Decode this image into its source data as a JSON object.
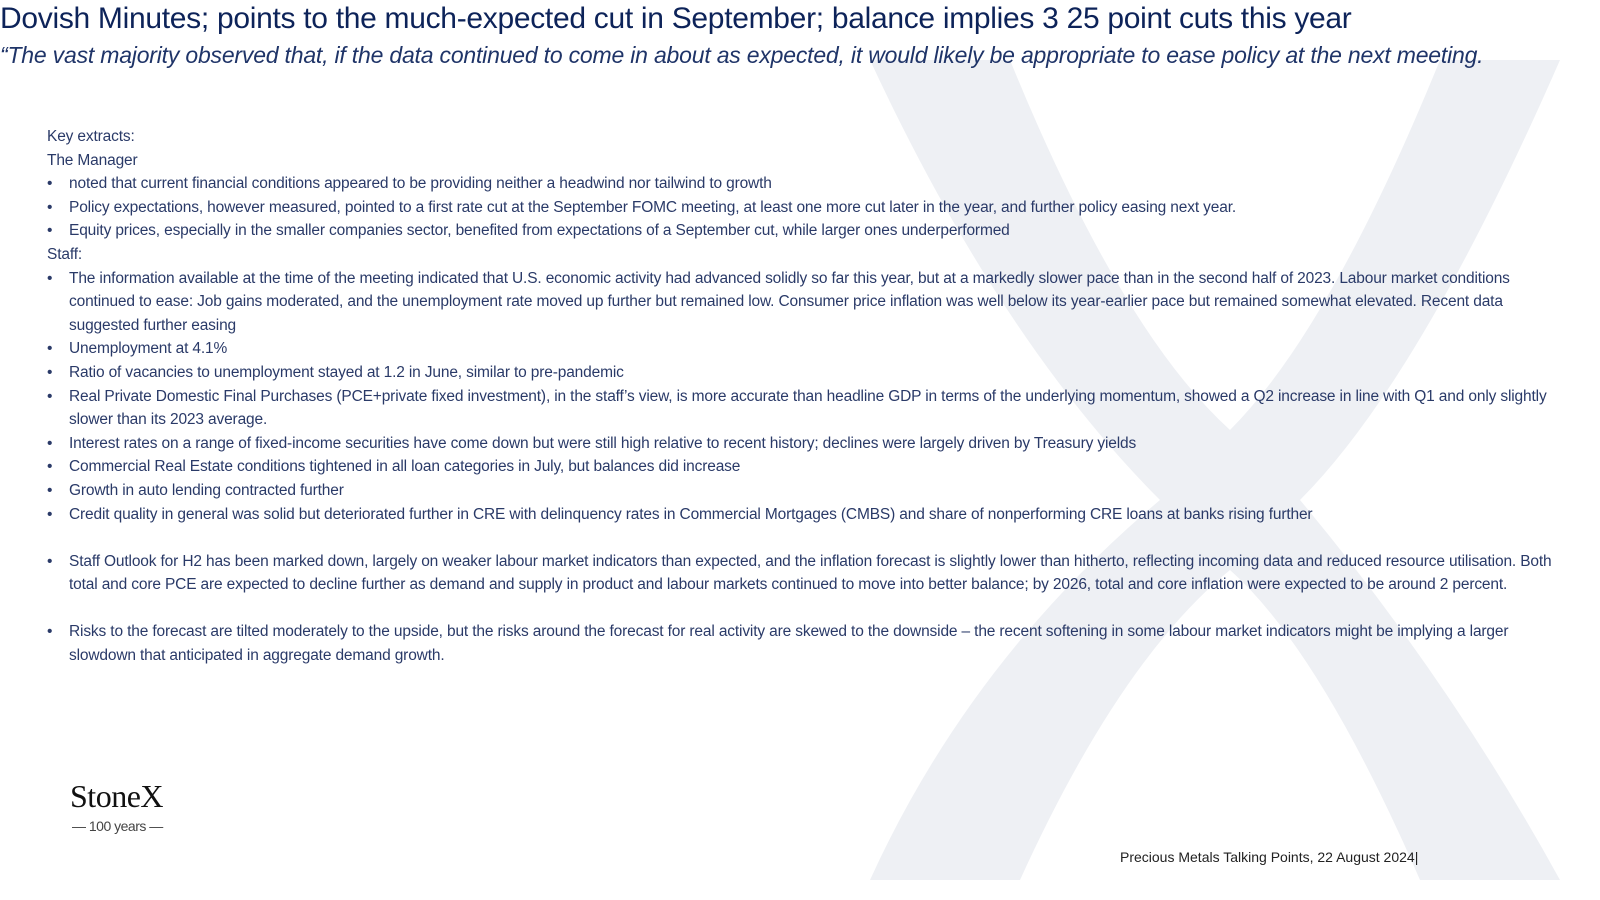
{
  "header": {
    "title": "Dovish Minutes; points to the much-expected cut in September; balance implies 3 25 point cuts this year",
    "quote": "“The vast majority observed that, if the data continued to come in about as expected, it would likely be appropriate to ease policy at the next meeting."
  },
  "body": {
    "intro": "Key extracts:",
    "manager": {
      "heading": "The Manager",
      "bullets": [
        " noted that current financial conditions appeared to be providing neither a headwind nor tailwind to growth",
        "Policy expectations, however measured, pointed to a first rate cut at the September FOMC meeting, at least one more cut later in the year, and further policy easing next year.",
        "Equity prices, especially in the smaller companies sector, benefited from expectations of a September cut, while larger ones underperformed"
      ]
    },
    "staff": {
      "heading": "Staff:",
      "bullets": [
        " The information available at the time of the meeting indicated that U.S. economic activity had advanced solidly so far this year, but at a markedly slower pace than in the second half of 2023. Labour market conditions continued to ease: Job gains moderated, and the unemployment rate moved up further but remained low.  Consumer price inflation was well below its year-earlier pace but remained somewhat elevated. Recent data suggested further easing",
        "Unemployment at 4.1%",
        "Ratio of vacancies to unemployment stayed at 1.2 in June, similar to pre-pandemic",
        "Real Private Domestic Final Purchases (PCE+private fixed investment), in the staff’s view, is more accurate than headline GDP in terms of the underlying momentum, showed a Q2 increase in line with Q1 and only slightly slower than its 2023 average.",
        "Interest rates on a range of fixed-income securities have come down but were still high relative to recent history; declines were largely driven by Treasury yields",
        "Commercial Real Estate conditions tightened in all loan categories in July, but balances did increase",
        "Growth in auto lending contracted further",
        "Credit quality in general was solid but deteriorated further in CRE with delinquency rates in Commercial Mortgages (CMBS) and share of nonperforming CRE loans at banks rising further"
      ]
    },
    "outlook": [
      "Staff Outlook for H2 has been marked down, largely on weaker labour market indicators than expected, and the inflation forecast is slightly lower than hitherto, reflecting incoming data and reduced resource utilisation.  Both total and core PCE are expected to decline further as demand and supply in product and labour markets continued to move into better balance; by 2026, total and core inflation were expected to be around 2 percent."
    ],
    "risks": [
      "Risks to the forecast are tilted moderately to the upside, but the risks around the forecast for real activity are skewed to the downside – the recent softening in some labour market indicators might be implying a larger slowdown that anticipated in aggregate demand growth."
    ]
  },
  "logo": {
    "name": "StoneX",
    "tagline": "— 100 years —"
  },
  "footer": "Precious Metals Talking Points, 22 August 2024|"
}
